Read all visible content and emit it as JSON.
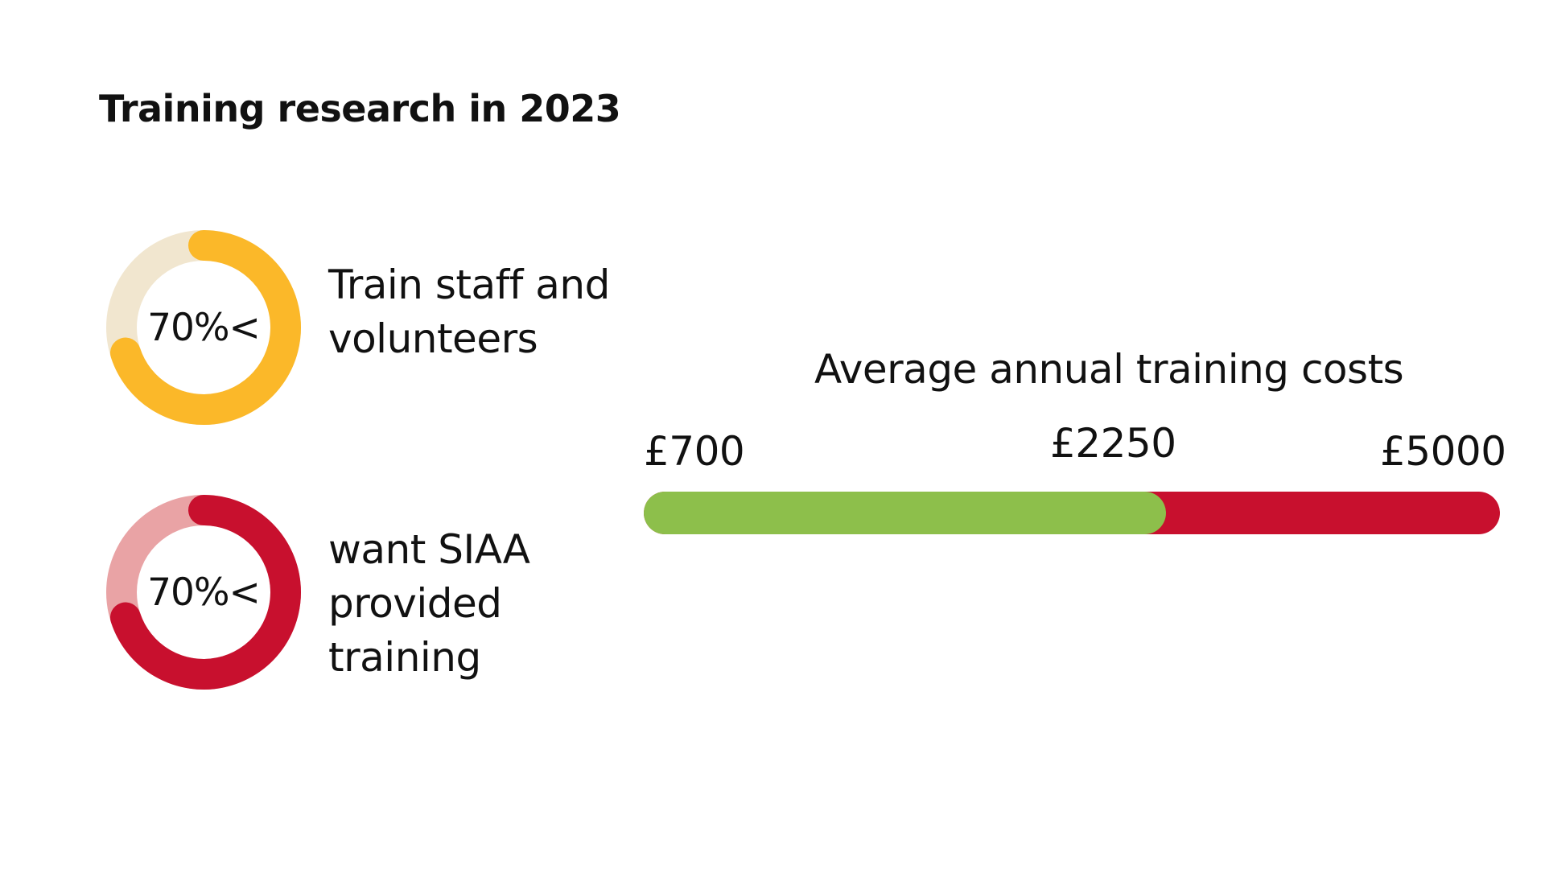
{
  "title": "Training research in 2023",
  "stats": [
    {
      "value_label": "70%<",
      "value": 70,
      "caption_lines": [
        "Train staff and",
        "volunteers"
      ],
      "color": "#FBB829",
      "track_color": "#F1E6CF"
    },
    {
      "value_label": "70%<",
      "value": 70,
      "caption_lines": [
        "want SIAA",
        "provided",
        "training"
      ],
      "color": "#C8102E",
      "track_color": "#E9A3A5"
    }
  ],
  "chart_data": {
    "type": "bar",
    "title": "Average annual training costs",
    "min": 700,
    "average": 2250,
    "max": 5000,
    "tick_labels": [
      "£700",
      "£2250",
      "£5000"
    ],
    "colors": {
      "low_segment": "#8DBF4B",
      "high_segment": "#C8102E"
    }
  }
}
